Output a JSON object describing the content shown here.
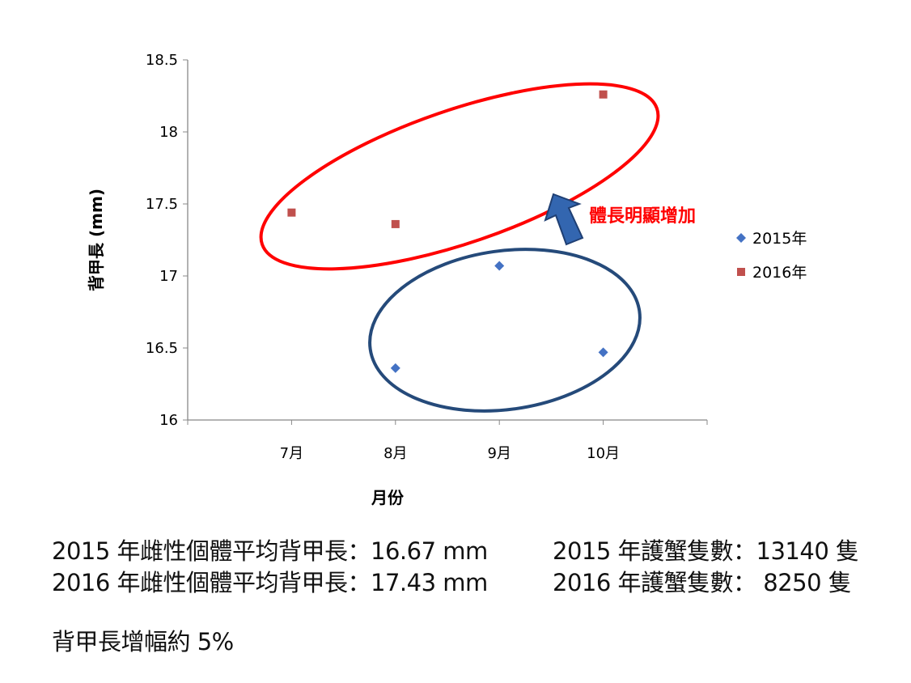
{
  "chart_data": {
    "type": "scatter",
    "title": "",
    "xlabel": "月份",
    "ylabel": "背甲長 (mm)",
    "categories": [
      "7月",
      "8月",
      "9月",
      "10月"
    ],
    "x_positions": [
      1,
      2,
      3,
      4
    ],
    "xlim": [
      0,
      5
    ],
    "ylim": [
      16,
      18.5
    ],
    "yticks": [
      "16",
      "16.5",
      "17",
      "17.5",
      "18",
      "18.5"
    ],
    "ytick_values": [
      16,
      16.5,
      17,
      17.5,
      18,
      18.5
    ],
    "grid": false,
    "legend_position": "right",
    "series": [
      {
        "name": "2015年",
        "marker": "diamond",
        "color": "#4472C4",
        "x": [
          2,
          3,
          4
        ],
        "y": [
          16.36,
          17.07,
          16.47
        ]
      },
      {
        "name": "2016年",
        "marker": "square",
        "color": "#C0504D",
        "x": [
          1,
          2,
          4
        ],
        "y": [
          17.44,
          17.36,
          18.26
        ]
      }
    ],
    "annotation": "體長明顯增加",
    "annotation_color": "#FF0000"
  },
  "info": {
    "line1_left": "2015 年雌性個體平均背甲長：16.67 mm",
    "line1_right": "2015 年護蟹隻數：13140 隻",
    "line2_left": "2016 年雌性個體平均背甲長：17.43 mm",
    "line2_right": "2016 年護蟹隻數： 8250 隻",
    "summary": "背甲長增幅約 5%"
  }
}
